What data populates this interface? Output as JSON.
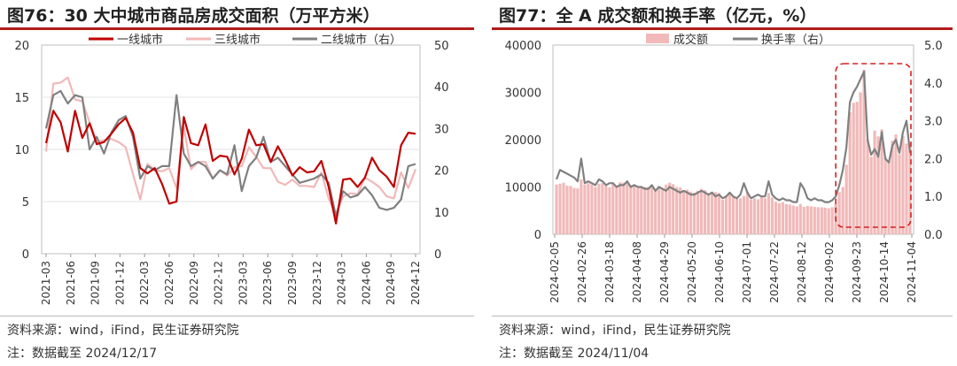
{
  "charts": [
    {
      "title": "图76：30 大中城市商品房成交面积（万平方米）",
      "source": "资料来源：wind，iFind，民生证券研究院",
      "note": "注：数据截至 2024/12/17",
      "chart_data": {
        "type": "line",
        "title": "图76：30 大中城市商品房成交面积（万平方米）",
        "ylim_left": [
          0,
          20
        ],
        "ylim_right": [
          0,
          50
        ],
        "yticks_left": [
          "0",
          "5",
          "10",
          "15",
          "20"
        ],
        "yticks_right": [
          "0",
          "10",
          "20",
          "30",
          "40",
          "50"
        ],
        "xticks": [
          "2021-03",
          "2021-06",
          "2021-09",
          "2021-12",
          "2022-03",
          "2022-06",
          "2022-09",
          "2022-12",
          "2023-03",
          "2023-06",
          "2023-09",
          "2023-12",
          "2024-03",
          "2024-06",
          "2024-09",
          "2024-12"
        ],
        "series": [
          {
            "name": "一线城市",
            "axis": "left",
            "color": "#c00000",
            "values": [
              10.6,
              13.7,
              12.6,
              9.8,
              13.7,
              11.1,
              12.5,
              10.5,
              10.7,
              11.5,
              12.4,
              13.0,
              11.6,
              8.2,
              7.7,
              8.2,
              6.7,
              4.8,
              5.0,
              13.1,
              10.6,
              10.4,
              12.4,
              8.9,
              9.4,
              9.3,
              7.6,
              9.1,
              11.9,
              10.4,
              10.5,
              8.8,
              10.3,
              9.0,
              7.5,
              8.3,
              7.8,
              7.9,
              8.9,
              6.4,
              2.9,
              7.1,
              7.2,
              6.4,
              7.3,
              9.2,
              8.0,
              7.4,
              6.4,
              10.4,
              11.6,
              11.5
            ]
          },
          {
            "name": "三线城市",
            "axis": "left",
            "color": "#f2b8b8",
            "values": [
              9.8,
              16.3,
              16.4,
              16.9,
              14.8,
              14.6,
              12.6,
              10.7,
              10.9,
              11.0,
              10.7,
              10.2,
              7.6,
              5.2,
              8.6,
              8.0,
              7.9,
              8.2,
              6.3,
              12.2,
              8.1,
              8.8,
              8.8,
              7.2,
              8.0,
              7.5,
              8.3,
              8.4,
              10.2,
              9.3,
              8.2,
              8.2,
              6.9,
              6.6,
              7.1,
              6.5,
              6.5,
              6.4,
              7.8,
              5.3,
              3.7,
              5.5,
              5.8,
              5.7,
              7.3,
              6.9,
              6.4,
              5.5,
              5.3,
              7.8,
              6.3,
              8.1
            ]
          },
          {
            "name": "二线城市（右）",
            "axis": "right",
            "color": "#808080",
            "values": [
              30,
              38,
              39,
              36,
              38,
              37.5,
              25,
              28,
              24,
              29,
              32,
              33,
              28,
              18,
              21,
              20,
              21,
              21,
              38,
              24,
              21,
              22,
              21,
              18,
              20,
              19,
              26,
              15,
              21,
              23,
              28,
              22,
              23,
              21,
              19,
              17,
              17.5,
              18,
              19,
              17,
              9,
              15,
              13.5,
              14,
              16,
              14,
              11,
              10.5,
              11,
              13,
              21,
              21.5
            ]
          }
        ]
      }
    },
    {
      "title": "图77：全 A 成交额和换手率（亿元，%）",
      "source": "资料来源：wind，iFind，民生证券研究院",
      "note": "注：数据截至 2024/11/04",
      "chart_data": {
        "type": "bar",
        "title": "图77：全 A 成交额和换手率（亿元，%）",
        "ylim_left": [
          0,
          40000
        ],
        "ylim_right": [
          0.0,
          5.0
        ],
        "yticks_left": [
          "0",
          "10000",
          "20000",
          "30000",
          "40000"
        ],
        "yticks_right": [
          "0.0",
          "1.0",
          "2.0",
          "3.0",
          "4.0",
          "5.0"
        ],
        "xticks": [
          "2024-02-05",
          "2024-02-26",
          "2024-03-18",
          "2024-04-08",
          "2024-04-29",
          "2024-05-20",
          "2024-06-10",
          "2024-07-01",
          "2024-07-22",
          "2024-08-12",
          "2024-09-02",
          "2024-09-23",
          "2024-10-14",
          "2024-11-04"
        ],
        "annotation": "dashed box 2024-09-23 to 2024-11-04",
        "series": [
          {
            "name": "成交额",
            "axis": "left",
            "type": "bar",
            "color": "#f1b9b9",
            "values": [
              10500,
              10700,
              10900,
              10300,
              10200,
              9800,
              9700,
              11600,
              10500,
              10800,
              10600,
              10000,
              10700,
              10800,
              10200,
              9900,
              10700,
              10000,
              11000,
              10900,
              11200,
              10400,
              10500,
              9800,
              10100,
              10000,
              10000,
              10400,
              9500,
              10200,
              9700,
              10500,
              10900,
              10600,
              10000,
              9900,
              9300,
              9400,
              9000,
              8800,
              9200,
              9600,
              9300,
              8700,
              9000,
              8900,
              8700,
              7300,
              8200,
              8500,
              8000,
              7500,
              7600,
              8100,
              8900,
              7300,
              7600,
              7400,
              7900,
              7600,
              8700,
              7800,
              6900,
              6600,
              6800,
              6400,
              6300,
              6100,
              5900,
              6400,
              5800,
              6000,
              5900,
              5800,
              5700,
              5700,
              5600,
              5500,
              5700,
              6500,
              8900,
              10000,
              14700,
              25800,
              27800,
              28000,
              30000,
              34800,
              20100,
              16400,
              21900,
              20700,
              22200,
              16200,
              15500,
              19800,
              21100,
              16900,
              20800,
              19200,
              19300
            ]
          },
          {
            "name": "换手率（右）",
            "axis": "right",
            "type": "line",
            "color": "#808080",
            "values": [
              1.45,
              1.7,
              1.65,
              1.6,
              1.55,
              1.5,
              1.4,
              2.0,
              1.35,
              1.4,
              1.35,
              1.3,
              1.45,
              1.4,
              1.3,
              1.35,
              1.35,
              1.25,
              1.3,
              1.3,
              1.4,
              1.25,
              1.3,
              1.25,
              1.25,
              1.2,
              1.2,
              1.3,
              1.15,
              1.25,
              1.2,
              1.15,
              1.25,
              1.2,
              1.15,
              1.1,
              1.15,
              1.1,
              1.05,
              1.05,
              1.1,
              1.15,
              1.1,
              1.05,
              1.1,
              1.0,
              1.05,
              0.95,
              1.0,
              1.1,
              1.0,
              0.95,
              1.05,
              1.35,
              1.1,
              0.95,
              1.0,
              1.05,
              1.0,
              1.0,
              1.4,
              1.05,
              0.95,
              0.9,
              0.95,
              0.9,
              0.9,
              0.85,
              0.85,
              1.35,
              1.2,
              0.95,
              0.9,
              0.95,
              0.9,
              0.9,
              0.85,
              0.85,
              0.9,
              1.0,
              1.3,
              1.7,
              2.3,
              3.5,
              3.75,
              3.9,
              4.1,
              4.3,
              2.5,
              2.1,
              2.25,
              2.05,
              2.7,
              2.0,
              1.9,
              2.35,
              2.5,
              2.15,
              2.7,
              3.0,
              2.15
            ]
          }
        ]
      }
    }
  ]
}
